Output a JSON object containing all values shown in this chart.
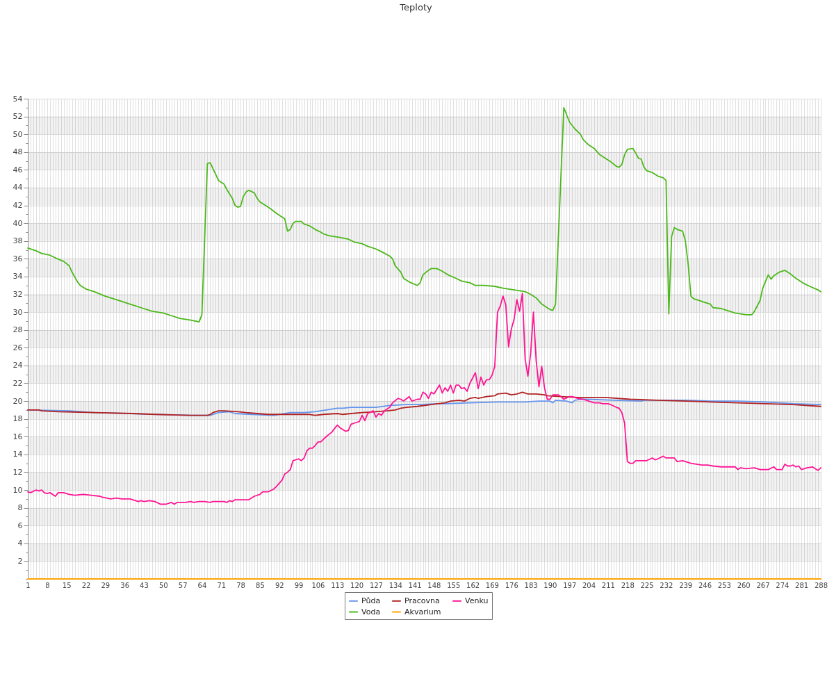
{
  "chart_data": {
    "type": "line",
    "title": "Teploty",
    "xlim": [
      1,
      288
    ],
    "xticks": [
      1,
      {
        "value": 2,
        "label": null
      },
      {
        "value": 3,
        "label": null
      },
      {
        "value": 4,
        "label": null
      },
      {
        "value": 5,
        "label": null
      },
      {
        "value": 6,
        "label": null
      },
      {
        "value": 7,
        "label": null
      },
      8,
      {
        "value": 9,
        "label": null
      },
      {
        "value": 10,
        "label": null
      },
      {
        "value": 11,
        "label": null
      },
      {
        "value": 12,
        "label": null
      },
      {
        "value": 13,
        "label": null
      },
      {
        "value": 14,
        "label": null
      },
      15,
      {
        "value": 16,
        "label": null
      },
      {
        "value": 17,
        "label": null
      },
      {
        "value": 18,
        "label": null
      },
      {
        "value": 19,
        "label": null
      },
      {
        "value": 20,
        "label": null
      },
      {
        "value": 21,
        "label": null
      },
      22,
      {
        "value": 23,
        "label": null
      },
      {
        "value": 24,
        "label": null
      },
      {
        "value": 25,
        "label": null
      },
      {
        "value": 26,
        "label": null
      },
      {
        "value": 27,
        "label": null
      },
      {
        "value": 28,
        "label": null
      },
      29,
      {
        "value": 30,
        "label": null
      },
      {
        "value": 31,
        "label": null
      },
      {
        "value": 32,
        "label": null
      },
      {
        "value": 33,
        "label": null
      },
      {
        "value": 34,
        "label": null
      },
      {
        "value": 35,
        "label": null
      },
      36,
      {
        "value": 37,
        "label": null
      },
      {
        "value": 38,
        "label": null
      },
      {
        "value": 39,
        "label": null
      },
      {
        "value": 40,
        "label": null
      },
      {
        "value": 41,
        "label": null
      },
      {
        "value": 42,
        "label": null
      },
      43,
      {
        "value": 44,
        "label": null
      },
      {
        "value": 45,
        "label": null
      },
      {
        "value": 46,
        "label": null
      },
      {
        "value": 47,
        "label": null
      },
      {
        "value": 48,
        "label": null
      },
      {
        "value": 49,
        "label": null
      },
      50,
      {
        "value": 51,
        "label": null
      },
      {
        "value": 52,
        "label": null
      },
      {
        "value": 53,
        "label": null
      },
      {
        "value": 54,
        "label": null
      },
      {
        "value": 55,
        "label": null
      },
      {
        "value": 56,
        "label": null
      },
      57,
      {
        "value": 58,
        "label": null
      },
      {
        "value": 59,
        "label": null
      },
      {
        "value": 60,
        "label": null
      },
      {
        "value": 61,
        "label": null
      },
      {
        "value": 62,
        "label": null
      },
      {
        "value": 63,
        "label": null
      },
      64,
      {
        "value": 65,
        "label": null
      },
      {
        "value": 66,
        "label": null
      },
      {
        "value": 67,
        "label": null
      },
      {
        "value": 68,
        "label": null
      },
      {
        "value": 69,
        "label": null
      },
      {
        "value": 70,
        "label": null
      },
      71,
      {
        "value": 72,
        "label": null
      },
      {
        "value": 73,
        "label": null
      },
      {
        "value": 74,
        "label": null
      },
      {
        "value": 75,
        "label": null
      },
      {
        "value": 76,
        "label": null
      },
      {
        "value": 77,
        "label": null
      },
      78,
      {
        "value": 79,
        "label": null
      },
      {
        "value": 80,
        "label": null
      },
      {
        "value": 81,
        "label": null
      },
      {
        "value": 82,
        "label": null
      },
      {
        "value": 83,
        "label": null
      },
      {
        "value": 84,
        "label": null
      },
      85,
      {
        "value": 86,
        "label": null
      },
      {
        "value": 87,
        "label": null
      },
      {
        "value": 88,
        "label": null
      },
      {
        "value": 89,
        "label": null
      },
      {
        "value": 90,
        "label": null
      },
      {
        "value": 91,
        "label": null
      },
      92,
      {
        "value": 93,
        "label": null
      },
      {
        "value": 94,
        "label": null
      },
      {
        "value": 95,
        "label": null
      },
      {
        "value": 96,
        "label": null
      },
      {
        "value": 97,
        "label": null
      },
      {
        "value": 98,
        "label": null
      },
      99,
      {
        "value": 100,
        "label": null
      },
      {
        "value": 101,
        "label": null
      },
      {
        "value": 102,
        "label": null
      },
      {
        "value": 103,
        "label": null
      },
      {
        "value": 104,
        "label": null
      },
      {
        "value": 105,
        "label": null
      },
      106,
      {
        "value": 107,
        "label": null
      },
      {
        "value": 108,
        "label": null
      },
      {
        "value": 109,
        "label": null
      },
      {
        "value": 110,
        "label": null
      },
      {
        "value": 111,
        "label": null
      },
      {
        "value": 112,
        "label": null
      },
      113,
      {
        "value": 114,
        "label": null
      },
      {
        "value": 115,
        "label": null
      },
      {
        "value": 116,
        "label": null
      },
      {
        "value": 117,
        "label": null
      },
      {
        "value": 118,
        "label": null
      },
      {
        "value": 119,
        "label": null
      },
      120,
      {
        "value": 121,
        "label": null
      },
      {
        "value": 122,
        "label": null
      },
      {
        "value": 123,
        "label": null
      },
      {
        "value": 124,
        "label": null
      },
      {
        "value": 125,
        "label": null
      },
      {
        "value": 126,
        "label": null
      },
      127,
      {
        "value": 128,
        "label": null
      },
      {
        "value": 129,
        "label": null
      },
      {
        "value": 130,
        "label": null
      },
      {
        "value": 131,
        "label": null
      },
      {
        "value": 132,
        "label": null
      },
      {
        "value": 133,
        "label": null
      },
      134,
      {
        "value": 135,
        "label": null
      },
      {
        "value": 136,
        "label": null
      },
      {
        "value": 137,
        "label": null
      },
      {
        "value": 138,
        "label": null
      },
      {
        "value": 139,
        "label": null
      },
      {
        "value": 140,
        "label": null
      },
      141,
      {
        "value": 142,
        "label": null
      },
      {
        "value": 143,
        "label": null
      },
      {
        "value": 144,
        "label": null
      },
      {
        "value": 145,
        "label": null
      },
      {
        "value": 146,
        "label": null
      },
      {
        "value": 147,
        "label": null
      },
      148,
      {
        "value": 149,
        "label": null
      },
      {
        "value": 150,
        "label": null
      },
      {
        "value": 151,
        "label": null
      },
      {
        "value": 152,
        "label": null
      },
      {
        "value": 153,
        "label": null
      },
      {
        "value": 154,
        "label": null
      },
      155,
      {
        "value": 156,
        "label": null
      },
      {
        "value": 157,
        "label": null
      },
      {
        "value": 158,
        "label": null
      },
      {
        "value": 159,
        "label": null
      },
      {
        "value": 160,
        "label": null
      },
      {
        "value": 161,
        "label": null
      },
      162,
      {
        "value": 163,
        "label": null
      },
      {
        "value": 164,
        "label": null
      },
      {
        "value": 165,
        "label": null
      },
      {
        "value": 166,
        "label": null
      },
      {
        "value": 167,
        "label": null
      },
      {
        "value": 168,
        "label": null
      },
      169,
      {
        "value": 170,
        "label": null
      },
      {
        "value": 171,
        "label": null
      },
      {
        "value": 172,
        "label": null
      },
      {
        "value": 173,
        "label": null
      },
      {
        "value": 174,
        "label": null
      },
      {
        "value": 175,
        "label": null
      },
      176,
      {
        "value": 177,
        "label": null
      },
      {
        "value": 178,
        "label": null
      },
      {
        "value": 179,
        "label": null
      },
      {
        "value": 180,
        "label": null
      },
      {
        "value": 181,
        "label": null
      },
      {
        "value": 182,
        "label": null
      },
      183,
      {
        "value": 184,
        "label": null
      },
      {
        "value": 185,
        "label": null
      },
      {
        "value": 186,
        "label": null
      },
      {
        "value": 187,
        "label": null
      },
      {
        "value": 188,
        "label": null
      },
      {
        "value": 189,
        "label": null
      },
      190,
      {
        "value": 191,
        "label": null
      },
      {
        "value": 192,
        "label": null
      },
      {
        "value": 193,
        "label": null
      },
      {
        "value": 194,
        "label": null
      },
      {
        "value": 195,
        "label": null
      },
      {
        "value": 196,
        "label": null
      },
      197,
      {
        "value": 198,
        "label": null
      },
      {
        "value": 199,
        "label": null
      },
      {
        "value": 200,
        "label": null
      },
      {
        "value": 201,
        "label": null
      },
      {
        "value": 202,
        "label": null
      },
      {
        "value": 203,
        "label": null
      },
      204,
      {
        "value": 205,
        "label": null
      },
      {
        "value": 206,
        "label": null
      },
      {
        "value": 207,
        "label": null
      },
      {
        "value": 208,
        "label": null
      },
      {
        "value": 209,
        "label": null
      },
      {
        "value": 210,
        "label": null
      },
      211,
      {
        "value": 212,
        "label": null
      },
      {
        "value": 213,
        "label": null
      },
      {
        "value": 214,
        "label": null
      },
      {
        "value": 215,
        "label": null
      },
      {
        "value": 216,
        "label": null
      },
      {
        "value": 217,
        "label": null
      },
      218,
      {
        "value": 219,
        "label": null
      },
      {
        "value": 220,
        "label": null
      },
      {
        "value": 221,
        "label": null
      },
      {
        "value": 222,
        "label": null
      },
      {
        "value": 223,
        "label": null
      },
      {
        "value": 224,
        "label": null
      },
      225,
      {
        "value": 226,
        "label": null
      },
      {
        "value": 227,
        "label": null
      },
      {
        "value": 228,
        "label": null
      },
      {
        "value": 229,
        "label": null
      },
      {
        "value": 230,
        "label": null
      },
      {
        "value": 231,
        "label": null
      },
      232,
      {
        "value": 233,
        "label": null
      },
      {
        "value": 234,
        "label": null
      },
      {
        "value": 235,
        "label": null
      },
      {
        "value": 236,
        "label": null
      },
      {
        "value": 237,
        "label": null
      },
      {
        "value": 238,
        "label": null
      },
      239,
      {
        "value": 240,
        "label": null
      },
      {
        "value": 241,
        "label": null
      },
      {
        "value": 242,
        "label": null
      },
      {
        "value": 243,
        "label": null
      },
      {
        "value": 244,
        "label": null
      },
      {
        "value": 245,
        "label": null
      },
      246,
      {
        "value": 247,
        "label": null
      },
      {
        "value": 248,
        "label": null
      },
      {
        "value": 249,
        "label": null
      },
      {
        "value": 250,
        "label": null
      },
      {
        "value": 251,
        "label": null
      },
      {
        "value": 252,
        "label": null
      },
      253,
      {
        "value": 254,
        "label": null
      },
      {
        "value": 255,
        "label": null
      },
      {
        "value": 256,
        "label": null
      },
      {
        "value": 257,
        "label": null
      },
      {
        "value": 258,
        "label": null
      },
      {
        "value": 259,
        "label": null
      },
      260,
      {
        "value": 261,
        "label": null
      },
      {
        "value": 262,
        "label": null
      },
      {
        "value": 263,
        "label": null
      },
      {
        "value": 264,
        "label": null
      },
      {
        "value": 265,
        "label": null
      },
      {
        "value": 266,
        "label": null
      },
      267,
      {
        "value": 268,
        "label": null
      },
      {
        "value": 269,
        "label": null
      },
      {
        "value": 270,
        "label": null
      },
      {
        "value": 271,
        "label": null
      },
      {
        "value": 272,
        "label": null
      },
      {
        "value": 273,
        "label": null
      },
      274,
      {
        "value": 275,
        "label": null
      },
      {
        "value": 276,
        "label": null
      },
      {
        "value": 277,
        "label": null
      },
      {
        "value": 278,
        "label": null
      },
      {
        "value": 279,
        "label": null
      },
      {
        "value": 280,
        "label": null
      },
      281,
      {
        "value": 282,
        "label": null
      },
      {
        "value": 283,
        "label": null
      },
      {
        "value": 284,
        "label": null
      },
      {
        "value": 285,
        "label": null
      },
      {
        "value": 286,
        "label": null
      },
      {
        "value": 287,
        "label": null
      },
      288
    ],
    "ylim": [
      0,
      54
    ],
    "yticks": [
      {
        "value": 0,
        "label": null
      },
      {
        "value": 1,
        "label": null
      },
      2,
      {
        "value": 3,
        "label": null
      },
      4,
      {
        "value": 5,
        "label": null
      },
      6,
      {
        "value": 7,
        "label": null
      },
      8,
      {
        "value": 9,
        "label": null
      },
      10,
      {
        "value": 11,
        "label": null
      },
      12,
      {
        "value": 13,
        "label": null
      },
      14,
      {
        "value": 15,
        "label": null
      },
      16,
      {
        "value": 17,
        "label": null
      },
      18,
      {
        "value": 19,
        "label": null
      },
      20,
      {
        "value": 21,
        "label": null
      },
      22,
      {
        "value": 23,
        "label": null
      },
      24,
      {
        "value": 25,
        "label": null
      },
      26,
      {
        "value": 27,
        "label": null
      },
      28,
      {
        "value": 29,
        "label": null
      },
      30,
      {
        "value": 31,
        "label": null
      },
      32,
      {
        "value": 33,
        "label": null
      },
      34,
      {
        "value": 35,
        "label": null
      },
      36,
      {
        "value": 37,
        "label": null
      },
      38,
      {
        "value": 39,
        "label": null
      },
      40,
      {
        "value": 41,
        "label": null
      },
      42,
      {
        "value": 43,
        "label": null
      },
      44,
      {
        "value": 45,
        "label": null
      },
      46,
      {
        "value": 47,
        "label": null
      },
      48,
      {
        "value": 49,
        "label": null
      },
      50,
      {
        "value": 51,
        "label": null
      },
      52,
      {
        "value": 53,
        "label": null
      },
      54
    ],
    "grid": true,
    "legend": "bottom",
    "bands": [
      {
        "axis": "y",
        "from": 2,
        "to": 4,
        "color": "#f2f2f2"
      },
      {
        "axis": "y",
        "from": 6,
        "to": 8,
        "color": "#f2f2f2"
      },
      {
        "axis": "y",
        "from": 10,
        "to": 12,
        "color": "#f2f2f2"
      },
      {
        "axis": "y",
        "from": 14,
        "to": 16,
        "color": "#f2f2f2"
      },
      {
        "axis": "y",
        "from": 18,
        "to": 20,
        "color": "#f2f2f2"
      },
      {
        "axis": "y",
        "from": 22,
        "to": 24,
        "color": "#f2f2f2"
      },
      {
        "axis": "y",
        "from": 26,
        "to": 28,
        "color": "#f2f2f2"
      },
      {
        "axis": "y",
        "from": 30,
        "to": 32,
        "color": "#f2f2f2"
      },
      {
        "axis": "y",
        "from": 34,
        "to": 36,
        "color": "#f2f2f2"
      },
      {
        "axis": "y",
        "from": 38,
        "to": 40,
        "color": "#f2f2f2"
      },
      {
        "axis": "y",
        "from": 42,
        "to": 44,
        "color": "#f2f2f2"
      },
      {
        "axis": "y",
        "from": 46,
        "to": 48,
        "color": "#f2f2f2"
      },
      {
        "axis": "y",
        "from": 50,
        "to": 52,
        "color": "#f2f2f2"
      }
    ],
    "series": [
      {
        "name": "Půda",
        "color": "#6495ed",
        "x": [
          1,
          16,
          25,
          60,
          67,
          70,
          74,
          76,
          82,
          90,
          96,
          101,
          105,
          109,
          113,
          115,
          118,
          127,
          132,
          138,
          143,
          149,
          152,
          161,
          171,
          181,
          186,
          190,
          191,
          192,
          196,
          198,
          199,
          201,
          203,
          223,
          224,
          233,
          239,
          248,
          258,
          268,
          278,
          288
        ],
        "values": [
          19.0,
          18.9,
          18.7,
          18.4,
          18.4,
          18.7,
          18.8,
          18.6,
          18.5,
          18.4,
          18.7,
          18.7,
          18.8,
          19.0,
          19.2,
          19.2,
          19.3,
          19.3,
          19.5,
          19.6,
          19.6,
          19.7,
          19.7,
          19.8,
          19.9,
          19.9,
          20.0,
          20.0,
          19.8,
          20.1,
          20.0,
          19.8,
          20.1,
          20.2,
          20.2,
          20.0,
          20.1,
          20.1,
          20.1,
          20.0,
          20.0,
          19.9,
          19.7,
          19.6
        ]
      },
      {
        "name": "Pracovna",
        "color": "#b22222",
        "x": [
          1,
          5,
          6,
          12,
          25,
          39,
          47,
          60,
          66,
          67,
          68,
          70,
          72,
          77,
          80,
          84,
          88,
          103,
          105,
          108,
          113,
          115,
          118,
          122,
          127,
          131,
          134,
          136,
          138,
          142,
          147,
          152,
          154,
          157,
          159,
          161,
          163,
          164,
          167,
          170,
          171,
          174,
          176,
          178,
          180,
          182,
          185,
          188,
          189,
          194,
          200,
          210,
          219,
          229,
          239,
          248,
          258,
          268,
          278,
          288
        ],
        "values": [
          19.0,
          19.0,
          18.9,
          18.8,
          18.7,
          18.6,
          18.5,
          18.4,
          18.4,
          18.5,
          18.7,
          18.9,
          18.9,
          18.8,
          18.7,
          18.6,
          18.5,
          18.5,
          18.4,
          18.5,
          18.6,
          18.5,
          18.6,
          18.7,
          18.8,
          18.9,
          19.0,
          19.2,
          19.3,
          19.4,
          19.6,
          19.8,
          20.0,
          20.1,
          20.0,
          20.3,
          20.4,
          20.3,
          20.5,
          20.6,
          20.8,
          20.9,
          20.7,
          20.8,
          21.0,
          20.8,
          20.8,
          20.7,
          20.6,
          20.5,
          20.4,
          20.4,
          20.2,
          20.1,
          20.0,
          19.9,
          19.8,
          19.7,
          19.6,
          19.4
        ]
      },
      {
        "name": "Venku",
        "color": "#ff1493",
        "x": [
          1,
          2,
          4,
          5,
          6,
          7,
          8,
          9,
          11,
          12,
          14,
          16,
          18,
          21,
          24,
          27,
          28,
          31,
          33,
          35,
          38,
          41,
          42,
          43,
          45,
          47,
          49,
          51,
          53,
          54,
          55,
          58,
          60,
          61,
          63,
          65,
          67,
          68,
          72,
          73,
          74,
          75,
          76,
          81,
          83,
          85,
          86,
          88,
          90,
          91,
          93,
          94,
          95,
          96,
          97,
          99,
          100,
          101,
          102,
          103,
          104,
          105,
          106,
          107,
          109,
          111,
          113,
          114,
          116,
          117,
          118,
          121,
          122,
          123,
          124,
          126,
          127,
          128,
          129,
          130,
          132,
          133,
          135,
          136,
          137,
          139,
          140,
          142,
          143,
          144,
          145,
          146,
          147,
          148,
          150,
          151,
          152,
          153,
          154,
          155,
          156,
          157,
          158,
          159,
          160,
          161,
          163,
          164,
          165,
          166,
          167,
          168,
          169,
          170,
          171,
          172,
          173,
          174,
          175,
          176,
          177,
          178,
          179,
          180,
          181,
          182,
          183,
          184,
          185,
          186,
          187,
          188,
          189,
          190,
          191,
          193,
          194,
          195,
          197,
          198,
          200,
          202,
          204,
          206,
          208,
          209,
          211,
          212,
          214,
          215,
          216,
          217,
          218,
          219,
          220,
          221,
          223,
          224,
          225,
          227,
          228,
          229,
          231,
          232,
          233,
          235,
          236,
          238,
          239,
          241,
          243,
          245,
          247,
          249,
          252,
          255,
          257,
          258,
          259,
          261,
          264,
          266,
          268,
          269,
          271,
          272,
          274,
          275,
          276,
          277,
          278,
          279,
          280,
          281,
          283,
          285,
          287,
          288
        ],
        "values": [
          9.8,
          9.7,
          10.0,
          9.9,
          10.0,
          9.7,
          9.6,
          9.7,
          9.3,
          9.7,
          9.7,
          9.5,
          9.4,
          9.5,
          9.4,
          9.3,
          9.2,
          9.0,
          9.1,
          9.0,
          9.0,
          8.7,
          8.8,
          8.7,
          8.8,
          8.7,
          8.4,
          8.4,
          8.6,
          8.4,
          8.6,
          8.6,
          8.7,
          8.6,
          8.7,
          8.7,
          8.6,
          8.7,
          8.7,
          8.6,
          8.8,
          8.7,
          8.9,
          8.9,
          9.3,
          9.5,
          9.8,
          9.8,
          10.1,
          10.4,
          11.1,
          11.8,
          12.0,
          12.3,
          13.3,
          13.5,
          13.3,
          13.6,
          14.4,
          14.7,
          14.7,
          15.0,
          15.4,
          15.4,
          16.0,
          16.5,
          17.3,
          17.0,
          16.6,
          16.7,
          17.4,
          17.7,
          18.4,
          17.8,
          18.6,
          18.9,
          18.2,
          18.6,
          18.4,
          18.9,
          19.3,
          19.8,
          20.3,
          20.2,
          20.0,
          20.5,
          20.0,
          20.2,
          20.2,
          21.0,
          20.8,
          20.3,
          21.0,
          20.8,
          21.8,
          20.9,
          21.5,
          21.1,
          21.8,
          20.9,
          21.8,
          21.8,
          21.4,
          21.5,
          21.1,
          22.0,
          23.2,
          21.4,
          22.7,
          21.8,
          22.4,
          22.4,
          22.9,
          23.9,
          30.0,
          30.7,
          31.8,
          30.8,
          26.1,
          28.1,
          29.2,
          31.4,
          30.1,
          32.1,
          24.7,
          22.8,
          25.4,
          30.0,
          24.5,
          21.6,
          23.9,
          21.5,
          20.2,
          20.2,
          20.7,
          20.7,
          20.5,
          20.2,
          20.5,
          20.5,
          20.3,
          20.2,
          20.0,
          19.8,
          19.8,
          19.7,
          19.7,
          19.6,
          19.3,
          19.2,
          18.7,
          17.5,
          13.2,
          13.0,
          13.0,
          13.3,
          13.3,
          13.3,
          13.3,
          13.6,
          13.4,
          13.5,
          13.8,
          13.6,
          13.6,
          13.6,
          13.2,
          13.3,
          13.2,
          13.0,
          12.9,
          12.8,
          12.8,
          12.7,
          12.6,
          12.6,
          12.6,
          12.3,
          12.5,
          12.4,
          12.5,
          12.3,
          12.3,
          12.3,
          12.6,
          12.3,
          12.3,
          12.9,
          12.7,
          12.7,
          12.8,
          12.6,
          12.7,
          12.3,
          12.5,
          12.6,
          12.2,
          12.5
        ]
      },
      {
        "name": "Voda",
        "color": "#4cb81a",
        "x": [
          1,
          4,
          6,
          9,
          11,
          14,
          16,
          17,
          19,
          20,
          22,
          25,
          29,
          34,
          38,
          43,
          46,
          50,
          54,
          56,
          60,
          63,
          64,
          66,
          67,
          69,
          70,
          72,
          73,
          75,
          76,
          77,
          78,
          79,
          80,
          81,
          83,
          84,
          85,
          87,
          89,
          91,
          93,
          94,
          95,
          96,
          97,
          98,
          100,
          101,
          103,
          105,
          107,
          108,
          110,
          112,
          114,
          117,
          119,
          122,
          124,
          127,
          129,
          132,
          133,
          134,
          136,
          137,
          139,
          142,
          143,
          144,
          146,
          147,
          149,
          151,
          153,
          156,
          158,
          161,
          163,
          166,
          170,
          173,
          177,
          181,
          183,
          185,
          187,
          189,
          190,
          191,
          192,
          195,
          196,
          197,
          199,
          201,
          202,
          204,
          206,
          208,
          210,
          212,
          214,
          215,
          216,
          217,
          218,
          220,
          221,
          222,
          223,
          224,
          225,
          227,
          229,
          231,
          232,
          233,
          234,
          235,
          236,
          238,
          239,
          240,
          241,
          242,
          244,
          246,
          248,
          249,
          252,
          254,
          257,
          259,
          261,
          263,
          264,
          266,
          267,
          269,
          270,
          271,
          273,
          275,
          277,
          279,
          280,
          282,
          284,
          287,
          288
        ],
        "values": [
          37.2,
          36.9,
          36.6,
          36.4,
          36.1,
          35.7,
          35.2,
          34.5,
          33.4,
          33.0,
          32.6,
          32.3,
          31.8,
          31.3,
          30.9,
          30.4,
          30.1,
          29.9,
          29.5,
          29.3,
          29.1,
          28.9,
          29.7,
          46.7,
          46.8,
          45.5,
          44.8,
          44.4,
          43.8,
          42.8,
          42.0,
          41.8,
          41.9,
          43.0,
          43.5,
          43.7,
          43.4,
          42.8,
          42.4,
          42.0,
          41.6,
          41.1,
          40.7,
          40.5,
          39.1,
          39.3,
          40.0,
          40.2,
          40.2,
          39.9,
          39.7,
          39.3,
          39.0,
          38.8,
          38.6,
          38.5,
          38.4,
          38.2,
          37.9,
          37.7,
          37.4,
          37.1,
          36.8,
          36.3,
          36.0,
          35.2,
          34.5,
          33.8,
          33.4,
          33.0,
          33.3,
          34.2,
          34.7,
          34.9,
          34.9,
          34.6,
          34.2,
          33.8,
          33.5,
          33.3,
          33.0,
          33.0,
          32.9,
          32.7,
          32.5,
          32.3,
          32.0,
          31.6,
          30.9,
          30.5,
          30.3,
          30.2,
          30.9,
          53.0,
          52.2,
          51.4,
          50.6,
          50.0,
          49.4,
          48.8,
          48.4,
          47.7,
          47.3,
          46.9,
          46.4,
          46.3,
          46.6,
          47.7,
          48.3,
          48.4,
          47.9,
          47.3,
          47.2,
          46.3,
          45.9,
          45.7,
          45.3,
          45.1,
          44.8,
          29.8,
          38.5,
          39.5,
          39.3,
          39.1,
          38.0,
          35.4,
          31.8,
          31.5,
          31.3,
          31.1,
          30.9,
          30.5,
          30.4,
          30.2,
          29.9,
          29.8,
          29.7,
          29.7,
          30.1,
          31.3,
          32.7,
          34.2,
          33.7,
          34.1,
          34.5,
          34.7,
          34.3,
          33.8,
          33.6,
          33.2,
          32.9,
          32.5,
          32.3
        ]
      },
      {
        "name": "Akvarium",
        "color": "#ffa500",
        "x": [
          1,
          288
        ],
        "values": [
          0,
          0
        ]
      }
    ]
  }
}
